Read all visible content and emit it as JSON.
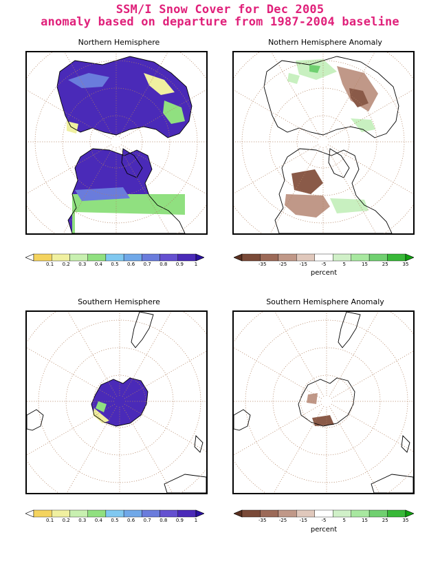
{
  "title_line1": "SSM/I Snow Cover for Dec 2005",
  "title_line2": "anomaly based on departure from 1987-2004 baseline",
  "panels": {
    "nh": {
      "title": "Northern Hemisphere"
    },
    "nh_anom": {
      "title": "Nothern Hemisphere Anomaly"
    },
    "sh": {
      "title": "Southern Hemisphere"
    },
    "sh_anom": {
      "title": "Southern Hemisphere Anomaly"
    }
  },
  "fraction_scale": {
    "ticks": [
      "0.1",
      "0.2",
      "0.3",
      "0.4",
      "0.5",
      "0.6",
      "0.7",
      "0.8",
      "0.9",
      "1"
    ],
    "colors": [
      "#ffffff",
      "#f4d35e",
      "#f0f0a0",
      "#c8f0b0",
      "#90e080",
      "#80c8f0",
      "#70a8e8",
      "#6a7cdc",
      "#6450d0",
      "#4a2ab8",
      "#2a12a0"
    ]
  },
  "anomaly_scale": {
    "ticks": [
      "-35",
      "-25",
      "-15",
      "-5",
      "5",
      "15",
      "25",
      "35"
    ],
    "unit": "percent",
    "colors": [
      "#5a3020",
      "#7a4a38",
      "#9c6a58",
      "#c09888",
      "#e0c8bc",
      "#ffffff",
      "#d0f0c8",
      "#a8e8a0",
      "#70d070",
      "#38b838",
      "#10a010"
    ]
  },
  "map_colors": {
    "snow_deep": "#4a2ab8",
    "snow_mid": "#6a7cdc",
    "snow_light": "#90e080",
    "snow_yellow": "#f0f0a0",
    "anom_neg": "#8a5a48",
    "anom_neg_light": "#c09888",
    "anom_pos": "#70d070",
    "anom_pos_light": "#c8f0c0",
    "grid": "#b08060",
    "coast": "#000000"
  }
}
